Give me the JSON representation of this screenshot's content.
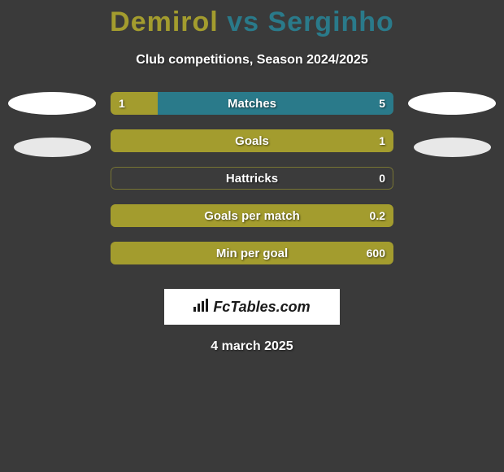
{
  "title": {
    "player1": "Demirol",
    "vs": "vs",
    "player2": "Serginho",
    "player1_color": "#a39c2e",
    "vs_color": "#2a7a8a",
    "player2_color": "#2a7a8a"
  },
  "subtitle": "Club competitions, Season 2024/2025",
  "background_color": "#3a3a3a",
  "bar_left_color": "#a39c2e",
  "bar_right_color": "#2a7a8a",
  "bar_empty_color": "rgba(60,60,60,0.5)",
  "stats": [
    {
      "label": "Matches",
      "left_value": "1",
      "right_value": "5",
      "left_pct": 16.7,
      "right_pct": 83.3,
      "show_left": true,
      "show_right": true,
      "right_color": "#2a7a8a"
    },
    {
      "label": "Goals",
      "left_value": "",
      "right_value": "1",
      "left_pct": 0,
      "right_pct": 100,
      "show_left": false,
      "show_right": true,
      "right_color": "#a39c2e"
    },
    {
      "label": "Hattricks",
      "left_value": "",
      "right_value": "0",
      "left_pct": 0,
      "right_pct": 0,
      "show_left": false,
      "show_right": true,
      "right_color": "#a39c2e"
    },
    {
      "label": "Goals per match",
      "left_value": "",
      "right_value": "0.2",
      "left_pct": 0,
      "right_pct": 100,
      "show_left": false,
      "show_right": true,
      "right_color": "#a39c2e"
    },
    {
      "label": "Min per goal",
      "left_value": "",
      "right_value": "600",
      "left_pct": 0,
      "right_pct": 100,
      "show_left": false,
      "show_right": true,
      "right_color": "#a39c2e"
    }
  ],
  "logo": {
    "text": "FcTables.com"
  },
  "date": "4 march 2025",
  "placeholders": {
    "left_ellipse_color": "#ffffff",
    "right_ellipse_color": "#ffffff",
    "left_ellipse2_color": "#e8e8e8",
    "right_ellipse2_color": "#e8e8e8"
  }
}
